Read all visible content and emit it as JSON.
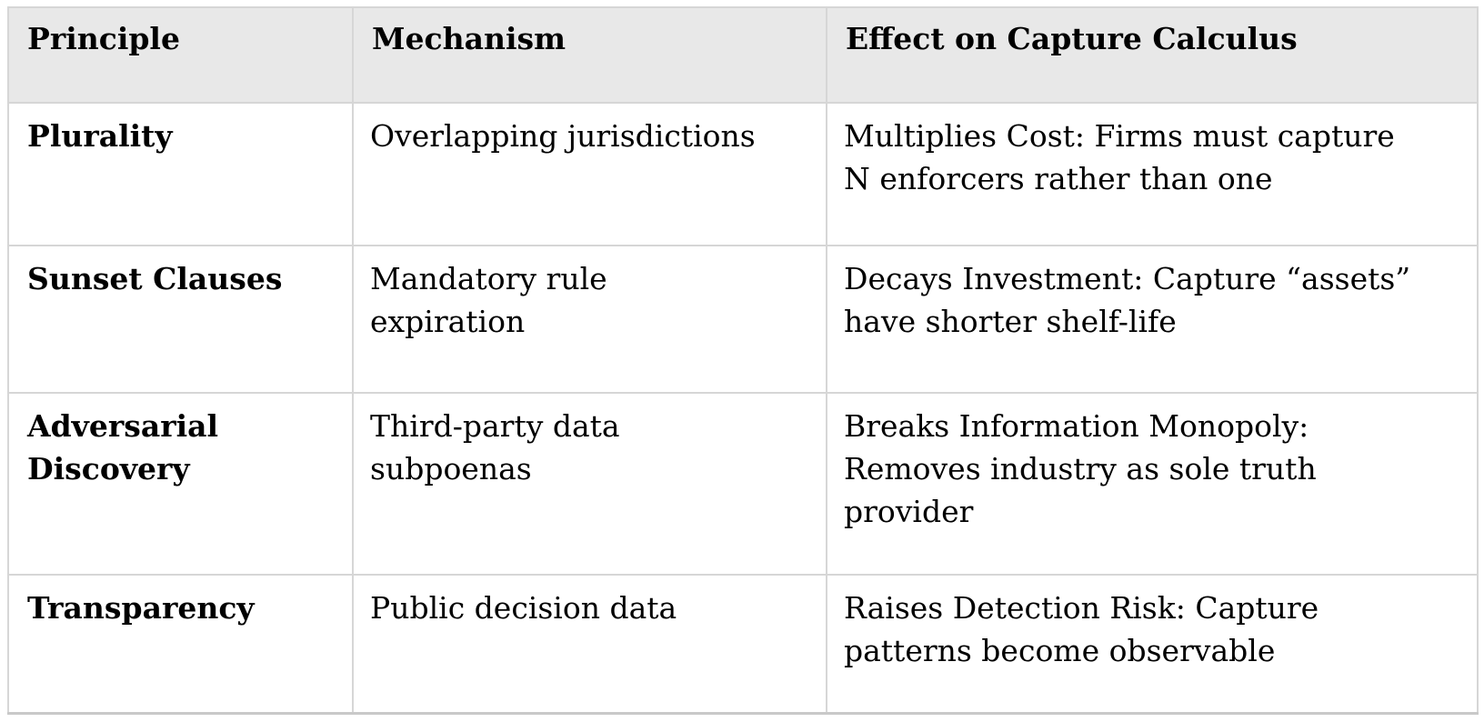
{
  "table": {
    "columns": [
      {
        "key": "principle",
        "label": "Principle"
      },
      {
        "key": "mechanism",
        "label": "Mechanism"
      },
      {
        "key": "effect",
        "label": "Effect on Capture Calculus"
      }
    ],
    "rows": [
      {
        "principle": "Plurality",
        "mechanism": "Overlapping jurisdictions",
        "effect": "Multiplies Cost: Firms must capture\nN enforcers rather than one"
      },
      {
        "principle": "Sunset Clauses",
        "mechanism": "Mandatory rule\nexpiration",
        "effect": "Decays Investment: Capture “assets”\nhave shorter shelf-life"
      },
      {
        "principle": "Adversarial\nDiscovery",
        "mechanism": "Third-party data\nsubpoenas",
        "effect": "Breaks Information Monopoly:\nRemoves industry as sole truth\nprovider"
      },
      {
        "principle": "Transparency",
        "mechanism": "Public decision data",
        "effect": "Raises Detection Risk: Capture\npatterns become observable"
      }
    ],
    "colors": {
      "header_bg": "#e8e8e8",
      "cell_bg": "#ffffff",
      "border": "#d6d6d6",
      "outer_bottom_border": "#c9c9c9",
      "text": "#000000"
    }
  }
}
